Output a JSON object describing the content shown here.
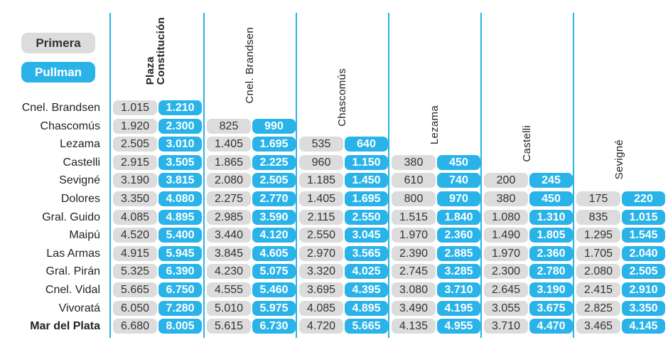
{
  "legend": {
    "primera": "Primera",
    "pullman": "Pullman"
  },
  "origins": [
    "Plaza\nConstitución",
    "Cnel. Brandsen",
    "Chascomús",
    "Lezama",
    "Castelli",
    "Sevigné"
  ],
  "destinations": [
    "Cnel. Brandsen",
    "Chascomús",
    "Lezama",
    "Castelli",
    "Sevigné",
    "Dolores",
    "Gral. Guido",
    "Maipú",
    "Las Armas",
    "Gral. Pirán",
    "Cnel. Vidal",
    "Vivoratá",
    "Mar del Plata"
  ],
  "fares": [
    [
      [
        "1.015",
        "1.210"
      ],
      null,
      null,
      null,
      null,
      null
    ],
    [
      [
        "1.920",
        "2.300"
      ],
      [
        "825",
        "990"
      ],
      null,
      null,
      null,
      null
    ],
    [
      [
        "2.505",
        "3.010"
      ],
      [
        "1.405",
        "1.695"
      ],
      [
        "535",
        "640"
      ],
      null,
      null,
      null
    ],
    [
      [
        "2.915",
        "3.505"
      ],
      [
        "1.865",
        "2.225"
      ],
      [
        "960",
        "1.150"
      ],
      [
        "380",
        "450"
      ],
      null,
      null
    ],
    [
      [
        "3.190",
        "3.815"
      ],
      [
        "2.080",
        "2.505"
      ],
      [
        "1.185",
        "1.450"
      ],
      [
        "610",
        "740"
      ],
      [
        "200",
        "245"
      ],
      null
    ],
    [
      [
        "3.350",
        "4.080"
      ],
      [
        "2.275",
        "2.770"
      ],
      [
        "1.405",
        "1.695"
      ],
      [
        "800",
        "970"
      ],
      [
        "380",
        "450"
      ],
      [
        "175",
        "220"
      ]
    ],
    [
      [
        "4.085",
        "4.895"
      ],
      [
        "2.985",
        "3.590"
      ],
      [
        "2.115",
        "2.550"
      ],
      [
        "1.515",
        "1.840"
      ],
      [
        "1.080",
        "1.310"
      ],
      [
        "835",
        "1.015"
      ]
    ],
    [
      [
        "4.520",
        "5.400"
      ],
      [
        "3.440",
        "4.120"
      ],
      [
        "2.550",
        "3.045"
      ],
      [
        "1.970",
        "2.360"
      ],
      [
        "1.490",
        "1.805"
      ],
      [
        "1.295",
        "1.545"
      ]
    ],
    [
      [
        "4.915",
        "5.945"
      ],
      [
        "3.845",
        "4.605"
      ],
      [
        "2.970",
        "3.565"
      ],
      [
        "2.390",
        "2.885"
      ],
      [
        "1.970",
        "2.360"
      ],
      [
        "1.705",
        "2.040"
      ]
    ],
    [
      [
        "5.325",
        "6.390"
      ],
      [
        "4.230",
        "5.075"
      ],
      [
        "3.320",
        "4.025"
      ],
      [
        "2.745",
        "3.285"
      ],
      [
        "2.300",
        "2.780"
      ],
      [
        "2.080",
        "2.505"
      ]
    ],
    [
      [
        "5.665",
        "6.750"
      ],
      [
        "4.555",
        "5.460"
      ],
      [
        "3.695",
        "4.395"
      ],
      [
        "3.080",
        "3.710"
      ],
      [
        "2.645",
        "3.190"
      ],
      [
        "2.415",
        "2.910"
      ]
    ],
    [
      [
        "6.050",
        "7.280"
      ],
      [
        "5.010",
        "5.975"
      ],
      [
        "4.085",
        "4.895"
      ],
      [
        "3.490",
        "4.195"
      ],
      [
        "3.055",
        "3.675"
      ],
      [
        "2.825",
        "3.350"
      ]
    ],
    [
      [
        "6.680",
        "8.005"
      ],
      [
        "5.615",
        "6.730"
      ],
      [
        "4.720",
        "5.665"
      ],
      [
        "4.135",
        "4.955"
      ],
      [
        "3.710",
        "4.470"
      ],
      [
        "3.465",
        "4.145"
      ]
    ]
  ],
  "colors": {
    "primera_bg": "#dcdcdc",
    "pullman_bg": "#29b3e8",
    "divider": "#29b3e8"
  }
}
